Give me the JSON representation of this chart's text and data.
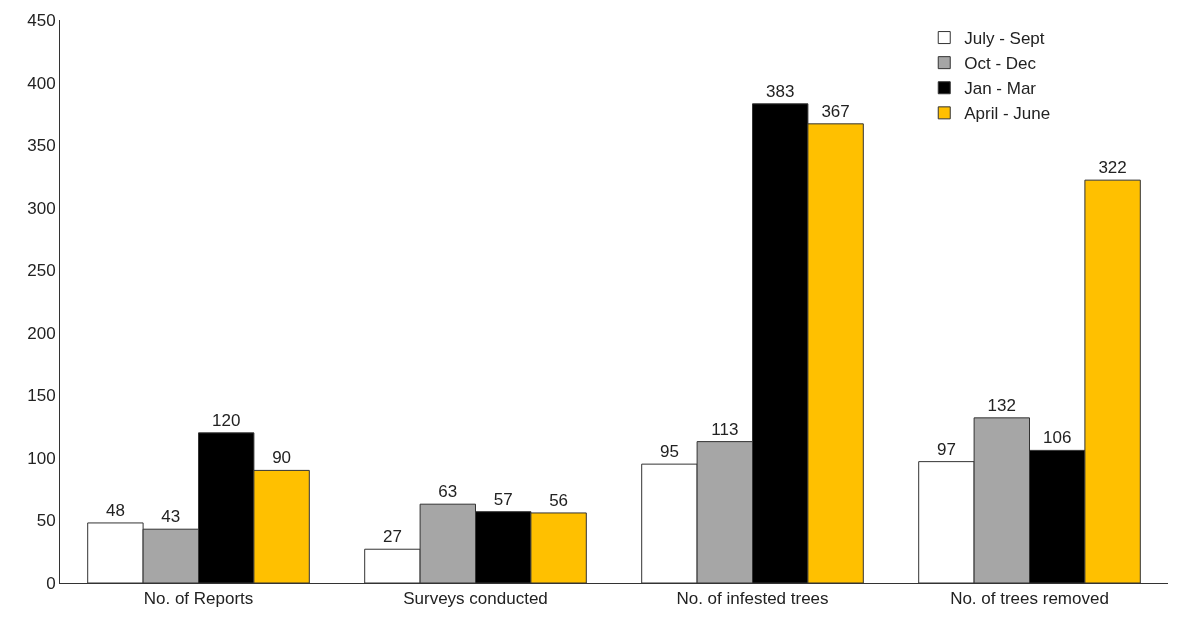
{
  "chart_data": {
    "type": "bar",
    "categories": [
      "No. of Reports",
      "Surveys conducted",
      "No. of infested trees",
      "No. of trees removed"
    ],
    "series": [
      {
        "name": "July - Sept",
        "color": "#ffffff",
        "values": [
          48,
          27,
          95,
          97
        ]
      },
      {
        "name": "Oct - Dec",
        "color": "#a6a6a6",
        "values": [
          43,
          63,
          113,
          132
        ]
      },
      {
        "name": "Jan - Mar",
        "color": "#000000",
        "values": [
          120,
          57,
          383,
          106
        ]
      },
      {
        "name": "April - June",
        "color": "#ffc000",
        "values": [
          90,
          56,
          367,
          322
        ]
      }
    ],
    "ylim": [
      0,
      450
    ],
    "yticks": [
      0,
      50,
      100,
      150,
      200,
      250,
      300,
      350,
      400,
      450
    ],
    "legend": "top right",
    "data_labels": true
  }
}
